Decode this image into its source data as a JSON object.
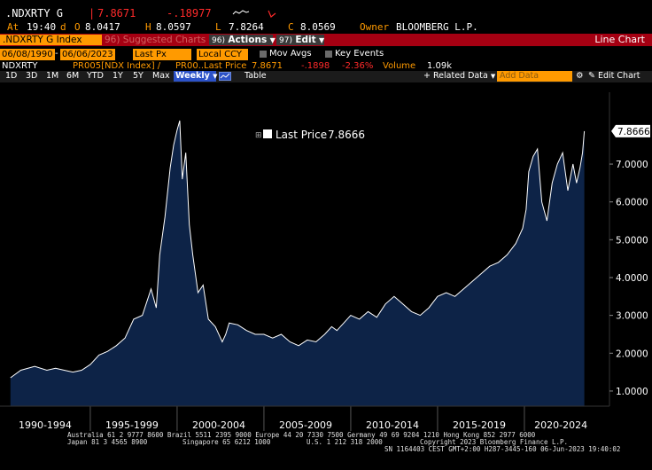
{
  "ticker": {
    "symbol": ".NDXRTY G",
    "last": "7.8671",
    "change": "-.18977",
    "at_label": "At",
    "time": "19:40",
    "d_label": "d",
    "o_label": "O",
    "open": "8.0417",
    "h_label": "H",
    "high": "8.0597",
    "l_label": "L",
    "low": "7.8264",
    "c_label": "C",
    "close": "8.0569",
    "owner_label": "Owner",
    "owner": "BLOOMBERG L.P."
  },
  "function_bar": {
    "security": ".NDXRTY G Index",
    "suggested": "96) Suggested Charts",
    "actions_num": "96",
    "actions": "Actions",
    "edit_num": "97",
    "edit": "Edit",
    "title": "Line Chart"
  },
  "controls": {
    "start_date": "06/08/1990",
    "end_date": "06/06/2023",
    "field": "Last Px",
    "currency": "Local CCY",
    "mov_avgs": "Mov Avgs",
    "key_events": "Key Events"
  },
  "legend_row": {
    "name": "NDXRTY",
    "study": "PR005[NDX Index] /",
    "study2": "PR00...",
    "last_price_label": "Last Price",
    "last_price": "7.8671",
    "change": "-.1898",
    "change_pct": "-2.36%",
    "volume_label": "Volume",
    "volume": "1.09k"
  },
  "period_tabs": [
    "1D",
    "3D",
    "1M",
    "6M",
    "YTD",
    "1Y",
    "5Y",
    "Max"
  ],
  "frequency": "Weekly",
  "table_label": "Table",
  "related_data": "Related Data",
  "add_data": "Add Data",
  "edit_chart": "Edit Chart",
  "tooltip": {
    "label": "Last Price",
    "value": "7.8666"
  },
  "footer": {
    "line1": "Australia 61 2 9777 8600 Brazil 5511 2395 9000 Europe 44 20 7330 7500 Germany 49 69 9204 1210 Hong Kong 852 2977 6000",
    "line2a": "Japan 81 3 4565 8900",
    "line2b": "Singapore 65 6212 1000",
    "line2c": "U.S. 1 212 318 2000",
    "line2d": "Copyright 2023 Bloomberg Finance L.P.",
    "line3": "SN 1164403 CEST GMT+2:00 H287-3445-160 06-Jun-2023 19:40:02"
  },
  "colors": {
    "background": "#000000",
    "function_bar": "#a50012",
    "amber": "#ff9a00",
    "area_fill": "#0d2347",
    "line": "#ffffff"
  },
  "chart_data": {
    "type": "area",
    "title": "",
    "xlabel": "",
    "ylabel": "",
    "ylim": [
      0.6,
      8.9
    ],
    "x_tick_labels": [
      "1990-1994",
      "1995-1999",
      "2000-2004",
      "2005-2009",
      "2010-2014",
      "2015-2019",
      "2020-2024"
    ],
    "y_ticks": [
      1.0,
      2.0,
      3.0,
      4.0,
      5.0,
      6.0,
      7.0
    ],
    "y_tick_labels": [
      "1.0000",
      "2.0000",
      "3.0000",
      "4.0000",
      "5.0000",
      "6.0000",
      "7.0000"
    ],
    "last_value_label": "7.8666",
    "grid": false,
    "series": [
      {
        "x": [
          1990.4,
          1991.0,
          1991.8,
          1992.5,
          1993.0,
          1993.5,
          1994.0,
          1994.5,
          1995.0,
          1995.5,
          1996.0,
          1996.5,
          1997.0,
          1997.5,
          1998.0,
          1998.5,
          1998.8,
          1999.0,
          1999.3,
          1999.6,
          1999.8,
          2000.0,
          2000.15,
          2000.3,
          2000.5,
          2000.7,
          2000.9,
          2001.2,
          2001.5,
          2001.8,
          2002.2,
          2002.6,
          2002.8,
          2003.0,
          2003.5,
          2004.0,
          2004.5,
          2005.0,
          2005.5,
          2006.0,
          2006.5,
          2007.0,
          2007.5,
          2008.0,
          2008.5,
          2008.9,
          2009.2,
          2009.6,
          2010.0,
          2010.5,
          2011.0,
          2011.5,
          2012.0,
          2012.5,
          2013.0,
          2013.5,
          2014.0,
          2014.5,
          2015.0,
          2015.5,
          2016.0,
          2016.5,
          2017.0,
          2017.5,
          2018.0,
          2018.5,
          2019.0,
          2019.5,
          2019.9,
          2020.1,
          2020.25,
          2020.5,
          2020.75,
          2021.0,
          2021.3,
          2021.6,
          2021.9,
          2022.2,
          2022.5,
          2022.8,
          2023.0,
          2023.2,
          2023.35,
          2023.45
        ],
        "y": [
          1.35,
          1.55,
          1.65,
          1.55,
          1.6,
          1.55,
          1.5,
          1.55,
          1.7,
          1.95,
          2.05,
          2.2,
          2.4,
          2.9,
          3.0,
          3.7,
          3.2,
          4.6,
          5.6,
          6.9,
          7.5,
          7.9,
          8.15,
          6.6,
          7.3,
          5.4,
          4.6,
          3.6,
          3.8,
          2.9,
          2.7,
          2.3,
          2.5,
          2.8,
          2.75,
          2.6,
          2.5,
          2.5,
          2.4,
          2.5,
          2.3,
          2.2,
          2.35,
          2.3,
          2.5,
          2.7,
          2.6,
          2.8,
          3.0,
          2.9,
          3.1,
          2.95,
          3.3,
          3.5,
          3.3,
          3.1,
          3.0,
          3.2,
          3.5,
          3.6,
          3.5,
          3.7,
          3.9,
          4.1,
          4.3,
          4.4,
          4.6,
          4.9,
          5.3,
          5.8,
          6.8,
          7.2,
          7.4,
          6.0,
          5.5,
          6.5,
          7.0,
          7.3,
          6.3,
          7.0,
          6.5,
          6.9,
          7.3,
          7.87
        ]
      }
    ]
  }
}
